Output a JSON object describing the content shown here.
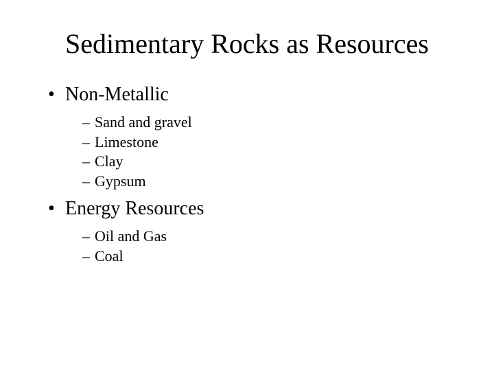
{
  "slide": {
    "title": "Sedimentary Rocks as Resources",
    "title_fontsize": 40,
    "level1_fontsize": 28,
    "level2_fontsize": 22,
    "background_color": "#ffffff",
    "text_color": "#000000",
    "font_family": "Times New Roman",
    "sections": [
      {
        "heading": "Non-Metallic",
        "items": [
          "Sand and gravel",
          "Limestone",
          "Clay",
          "Gypsum"
        ]
      },
      {
        "heading": "Energy Resources",
        "items": [
          "Oil and Gas",
          "Coal"
        ]
      }
    ]
  }
}
